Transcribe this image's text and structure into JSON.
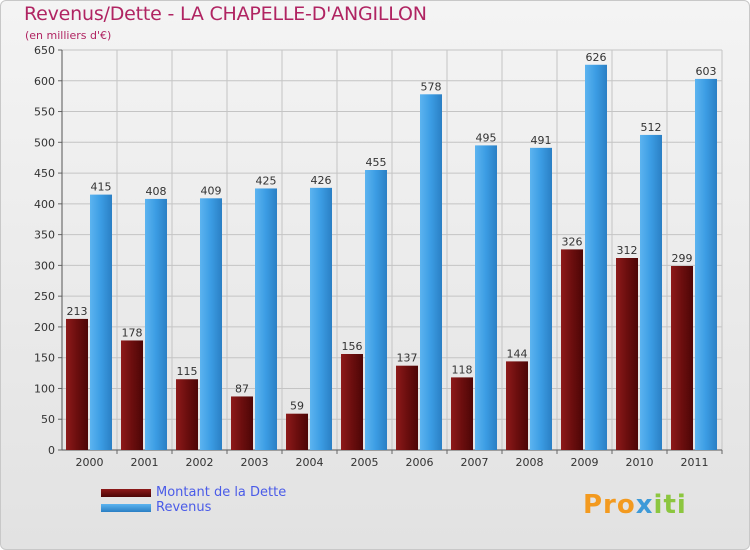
{
  "title": "Revenus/Dette - LA CHAPELLE-D'ANGILLON",
  "subtitle": "(en milliers d'€)",
  "colors": {
    "dette": "#7a1010",
    "revenus": "#3a9ae0",
    "title": "#b02462",
    "legend_text": "#4a5be8"
  },
  "legend": {
    "dette_label": "Montant de la Dette",
    "revenus_label": "Revenus"
  },
  "logo": {
    "part1": "Pro",
    "part2": "x",
    "part3": "iti"
  },
  "chart_data": {
    "type": "bar",
    "title": "Revenus/Dette - LA CHAPELLE-D'ANGILLON",
    "ylabel": "(en milliers d'€)",
    "xlabel": "",
    "categories": [
      "2000",
      "2001",
      "2002",
      "2003",
      "2004",
      "2005",
      "2006",
      "2007",
      "2008",
      "2009",
      "2010",
      "2011"
    ],
    "ylim": [
      0,
      650
    ],
    "yticks": [
      0,
      50,
      100,
      150,
      200,
      250,
      300,
      350,
      400,
      450,
      500,
      550,
      600,
      650
    ],
    "grid": true,
    "series": [
      {
        "name": "Montant de la Dette",
        "values": [
          213,
          178,
          115,
          87,
          59,
          156,
          137,
          118,
          144,
          326,
          312,
          299
        ]
      },
      {
        "name": "Revenus",
        "values": [
          415,
          408,
          409,
          425,
          426,
          455,
          578,
          495,
          491,
          626,
          512,
          603
        ]
      }
    ]
  }
}
